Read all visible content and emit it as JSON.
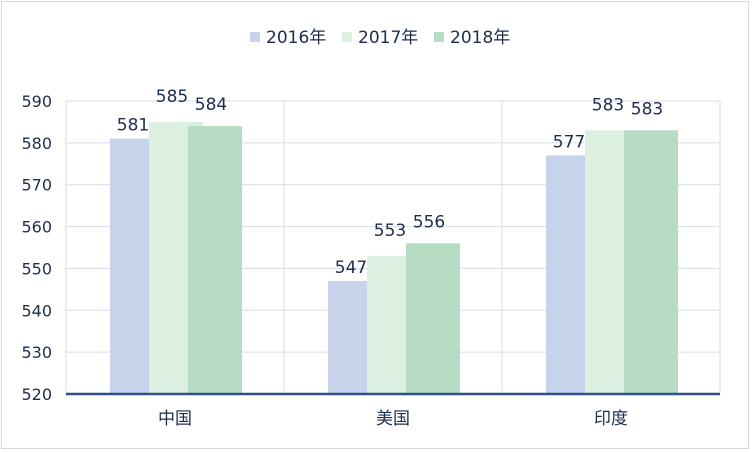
{
  "chart_data": {
    "type": "bar",
    "categories": [
      "中国",
      "美国",
      "印度"
    ],
    "series": [
      {
        "name": "2016年",
        "values": [
          581,
          547,
          577
        ],
        "color": "#c6d3ea"
      },
      {
        "name": "2017年",
        "values": [
          585,
          553,
          583
        ],
        "color": "#dcf0e2"
      },
      {
        "name": "2018年",
        "values": [
          584,
          556,
          583
        ],
        "color": "#b7dcc4"
      }
    ],
    "ylim": [
      520,
      590
    ],
    "yticks": [
      520,
      530,
      540,
      550,
      560,
      570,
      580,
      590
    ],
    "grid": true,
    "legend": "top-center",
    "axis_color": "#2f4f8f",
    "grid_color": "#d9dce6"
  }
}
